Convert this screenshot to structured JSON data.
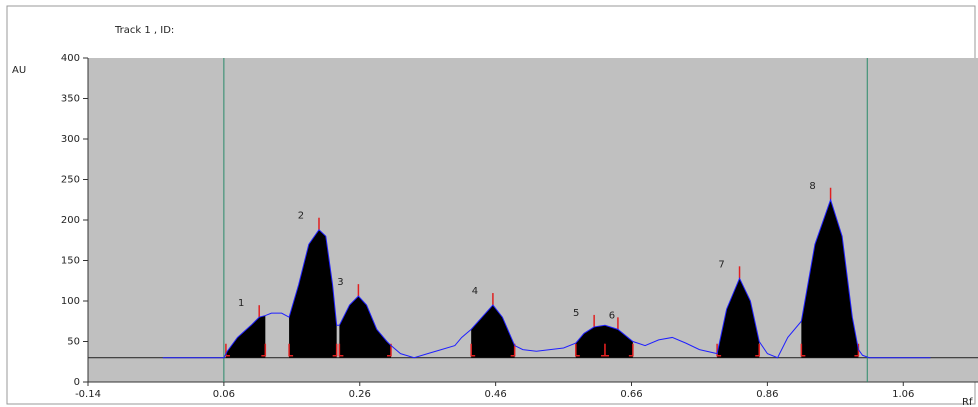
{
  "chart_data": {
    "type": "line",
    "title": "Track 1 , ID:",
    "y_label": "AU",
    "x_label": "Rf",
    "xlim": [
      -0.14,
      1.17
    ],
    "ylim": [
      0,
      400
    ],
    "xticks": [
      -0.14,
      0.06,
      0.26,
      0.46,
      0.66,
      0.86,
      1.06
    ],
    "yticks": [
      0,
      50,
      100,
      150,
      200,
      250,
      300,
      350,
      400
    ],
    "baseline": 30,
    "vlines": [
      0.06,
      1.007
    ],
    "color": "#1f1fff",
    "fill_color": "#000000",
    "x": [
      -0.03,
      0.06,
      0.065,
      0.08,
      0.1,
      0.112,
      0.121,
      0.13,
      0.145,
      0.156,
      0.17,
      0.185,
      0.2,
      0.21,
      0.22,
      0.226,
      0.23,
      0.245,
      0.258,
      0.27,
      0.285,
      0.3,
      0.306,
      0.32,
      0.34,
      0.36,
      0.38,
      0.4,
      0.41,
      0.424,
      0.44,
      0.456,
      0.47,
      0.488,
      0.5,
      0.52,
      0.54,
      0.56,
      0.578,
      0.59,
      0.605,
      0.621,
      0.64,
      0.662,
      0.68,
      0.7,
      0.72,
      0.74,
      0.76,
      0.786,
      0.8,
      0.819,
      0.835,
      0.848,
      0.86,
      0.875,
      0.89,
      0.91,
      0.93,
      0.953,
      0.97,
      0.985,
      0.994,
      1.0,
      1.01,
      1.1
    ],
    "values": [
      30,
      30,
      38,
      55,
      70,
      80,
      82,
      85,
      85,
      80,
      120,
      170,
      188,
      180,
      120,
      70,
      70,
      95,
      106,
      95,
      65,
      50,
      45,
      35,
      30,
      35,
      40,
      45,
      55,
      65,
      80,
      95,
      80,
      45,
      40,
      38,
      40,
      42,
      48,
      60,
      68,
      70,
      65,
      50,
      45,
      52,
      55,
      48,
      40,
      35,
      90,
      128,
      100,
      50,
      35,
      30,
      55,
      75,
      170,
      225,
      180,
      80,
      40,
      33,
      30,
      30
    ],
    "peaks": [
      {
        "label": "1",
        "start": 0.063,
        "end": 0.121
      },
      {
        "label": "2",
        "start": 0.156,
        "end": 0.226
      },
      {
        "label": "3",
        "start": 0.23,
        "end": 0.306
      },
      {
        "label": "4",
        "start": 0.424,
        "end": 0.488
      },
      {
        "label": "5",
        "start": 0.578,
        "end": 0.621
      },
      {
        "label": "6",
        "start": 0.621,
        "end": 0.662
      },
      {
        "label": "7",
        "start": 0.786,
        "end": 0.848
      },
      {
        "label": "8",
        "start": 0.91,
        "end": 0.994
      }
    ]
  }
}
